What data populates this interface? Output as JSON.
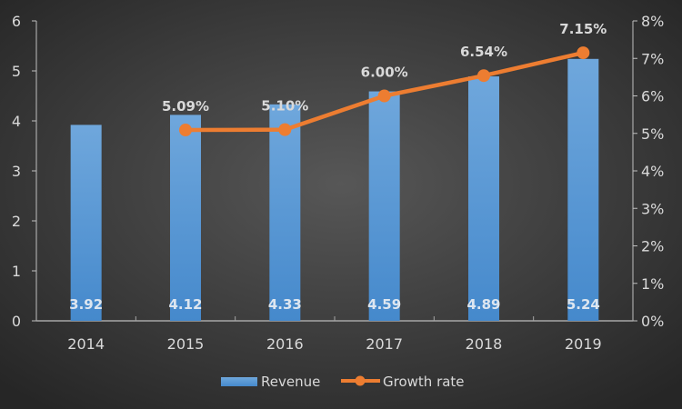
{
  "chart_data": {
    "type": "bar",
    "title": "",
    "categories": [
      "2014",
      "2015",
      "2016",
      "2017",
      "2018",
      "2019"
    ],
    "series": [
      {
        "name": "Revenue",
        "type": "bar",
        "axis": "left",
        "values": [
          3.92,
          4.12,
          4.33,
          4.59,
          4.89,
          5.24
        ],
        "labels": [
          "3.92",
          "4.12",
          "4.33",
          "4.59",
          "4.89",
          "5.24"
        ],
        "color": "#5b9bd5"
      },
      {
        "name": "Growth rate",
        "type": "line",
        "axis": "right",
        "values": [
          null,
          5.09,
          5.1,
          6.0,
          6.54,
          7.15
        ],
        "labels": [
          "",
          "5.09%",
          "5.10%",
          "6.00%",
          "6.54%",
          "7.15%"
        ],
        "color": "#ed7d31"
      }
    ],
    "left_axis": {
      "ylim": [
        0,
        6
      ],
      "ticks": [
        "0",
        "1",
        "2",
        "3",
        "4",
        "5",
        "6"
      ]
    },
    "right_axis": {
      "ylim": [
        0,
        8
      ],
      "ticks": [
        "0%",
        "1%",
        "2%",
        "3%",
        "4%",
        "5%",
        "6%",
        "7%",
        "8%"
      ]
    },
    "xlabel": "",
    "ylabel": "",
    "grid": false,
    "legend": {
      "position": "bottom",
      "entries": [
        "Revenue",
        "Growth rate"
      ]
    }
  }
}
